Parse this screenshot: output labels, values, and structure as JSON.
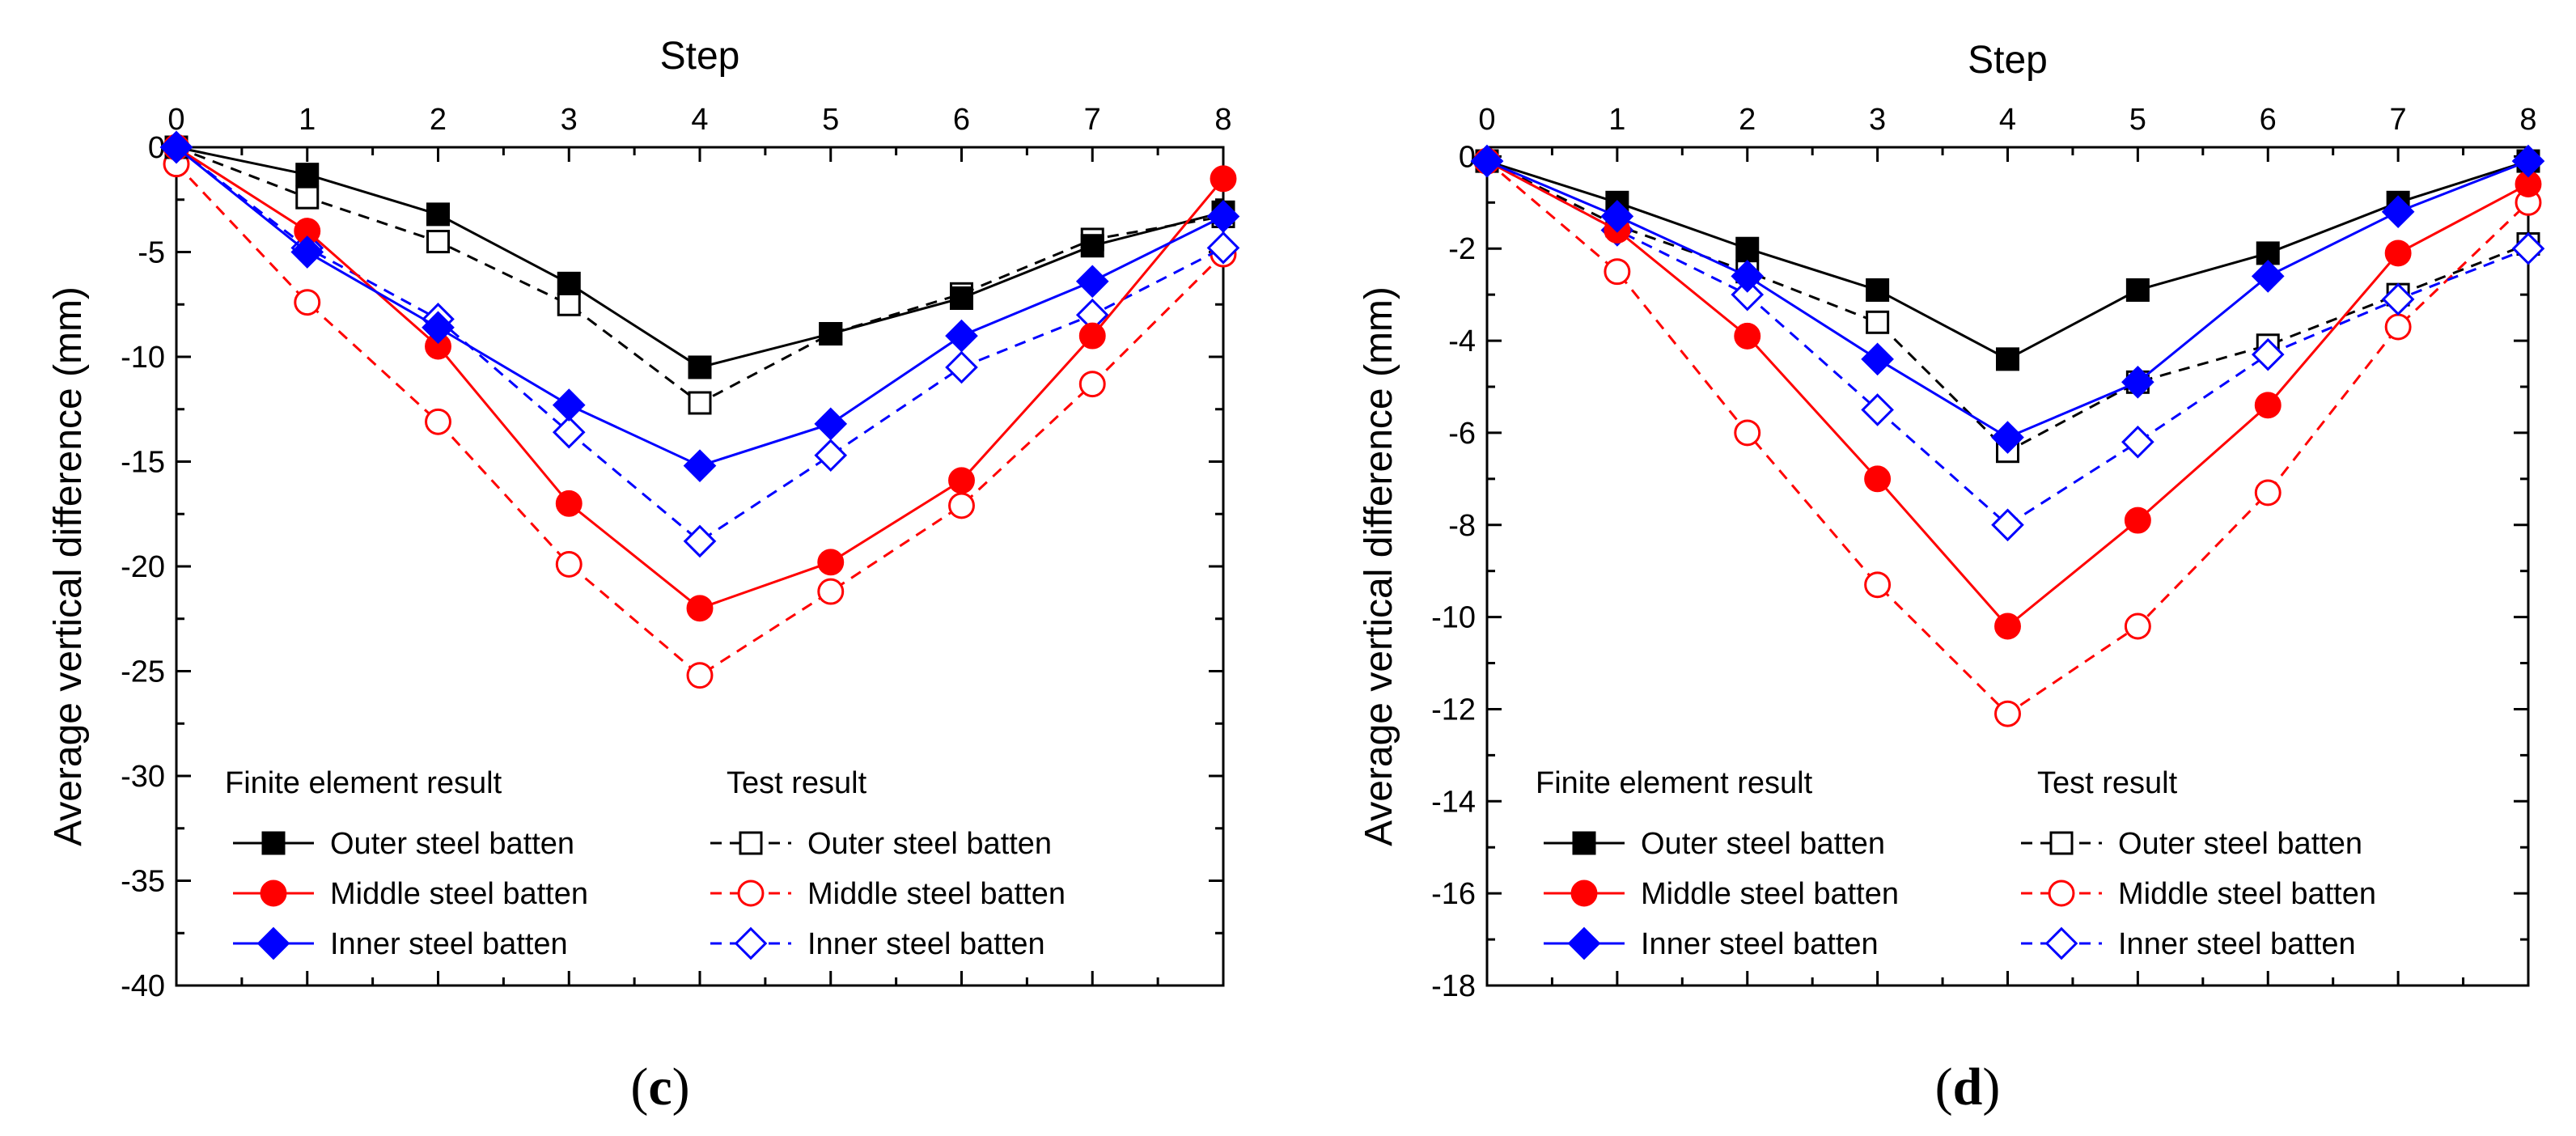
{
  "chart_data": [
    {
      "type": "line",
      "panel_label": {
        "open": "(",
        "letter": "c",
        "close": ")"
      },
      "xlabel": "Step",
      "ylabel": "Average vertical difference (mm)",
      "x": [
        0,
        1,
        2,
        3,
        4,
        5,
        6,
        7,
        8
      ],
      "xlim": [
        0,
        8
      ],
      "ylim": [
        -40,
        0
      ],
      "yticks": [
        0,
        -5,
        -10,
        -15,
        -20,
        -25,
        -30,
        -35,
        -40
      ],
      "xticks": [
        0,
        1,
        2,
        3,
        4,
        5,
        6,
        7,
        8
      ],
      "legend_headers": [
        "Finite element result",
        "Test result"
      ],
      "legend_placement": "bottom-left",
      "series": [
        {
          "name": "Outer steel batten",
          "group": "fe",
          "color": "#000000",
          "marker": "square",
          "filled": true,
          "dashed": false,
          "values": [
            0,
            -1.3,
            -3.2,
            -6.5,
            -10.5,
            -8.9,
            -7.2,
            -4.7,
            -3.1
          ]
        },
        {
          "name": "Middle steel batten",
          "group": "fe",
          "color": "#ff0000",
          "marker": "circle",
          "filled": true,
          "dashed": false,
          "values": [
            0,
            -4.0,
            -9.5,
            -17.0,
            -22.0,
            -19.8,
            -15.9,
            -9.0,
            -1.5
          ]
        },
        {
          "name": "Inner steel batten",
          "group": "fe",
          "color": "#0000ff",
          "marker": "diamond",
          "filled": true,
          "dashed": false,
          "values": [
            0,
            -5.0,
            -8.6,
            -12.3,
            -15.2,
            -13.2,
            -9.0,
            -6.4,
            -3.3
          ]
        },
        {
          "name": "Outer steel batten",
          "group": "test",
          "color": "#000000",
          "marker": "square",
          "filled": false,
          "dashed": true,
          "values": [
            0,
            -2.4,
            -4.5,
            -7.5,
            -12.2,
            -8.9,
            -7.0,
            -4.4,
            -3.3
          ]
        },
        {
          "name": "Middle steel batten",
          "group": "test",
          "color": "#ff0000",
          "marker": "circle",
          "filled": false,
          "dashed": true,
          "values": [
            -0.8,
            -7.4,
            -13.1,
            -19.9,
            -25.2,
            -21.2,
            -17.1,
            -11.3,
            -5.1
          ]
        },
        {
          "name": "Inner steel batten",
          "group": "test",
          "color": "#0000ff",
          "marker": "diamond",
          "filled": false,
          "dashed": true,
          "values": [
            0,
            -4.8,
            -8.2,
            -13.6,
            -18.8,
            -14.7,
            -10.5,
            -8.0,
            -4.8
          ]
        }
      ]
    },
    {
      "type": "line",
      "panel_label": {
        "open": "(",
        "letter": "d",
        "close": ")"
      },
      "xlabel": "Step",
      "ylabel": "Average vertical difference (mm)",
      "x": [
        0,
        1,
        2,
        3,
        4,
        5,
        6,
        7,
        8
      ],
      "xlim": [
        0,
        8
      ],
      "ylim": [
        -18,
        0.2
      ],
      "yticks": [
        0,
        -2,
        -4,
        -6,
        -8,
        -10,
        -12,
        -14,
        -16,
        -18
      ],
      "xticks": [
        0,
        1,
        2,
        3,
        4,
        5,
        6,
        7,
        8
      ],
      "legend_headers": [
        "Finite element result",
        "Test result"
      ],
      "legend_placement": "bottom-left",
      "series": [
        {
          "name": "Outer steel batten",
          "group": "fe",
          "color": "#000000",
          "marker": "square",
          "filled": true,
          "dashed": false,
          "values": [
            -0.1,
            -1.0,
            -2.0,
            -2.9,
            -4.4,
            -2.9,
            -2.1,
            -1.0,
            -0.1
          ]
        },
        {
          "name": "Middle steel batten",
          "group": "fe",
          "color": "#ff0000",
          "marker": "circle",
          "filled": true,
          "dashed": false,
          "values": [
            -0.1,
            -1.6,
            -3.9,
            -7.0,
            -10.2,
            -7.9,
            -5.4,
            -2.1,
            -0.6
          ]
        },
        {
          "name": "Inner steel batten",
          "group": "fe",
          "color": "#0000ff",
          "marker": "diamond",
          "filled": true,
          "dashed": false,
          "values": [
            -0.1,
            -1.3,
            -2.6,
            -4.4,
            -6.1,
            -4.9,
            -2.6,
            -1.2,
            -0.1
          ]
        },
        {
          "name": "Outer steel batten",
          "group": "test",
          "color": "#000000",
          "marker": "square",
          "filled": false,
          "dashed": true,
          "values": [
            -0.1,
            -1.5,
            -2.5,
            -3.6,
            -6.4,
            -4.9,
            -4.1,
            -3.0,
            -1.9
          ]
        },
        {
          "name": "Middle steel batten",
          "group": "test",
          "color": "#ff0000",
          "marker": "circle",
          "filled": false,
          "dashed": true,
          "values": [
            -0.1,
            -2.5,
            -6.0,
            -9.3,
            -12.1,
            -10.2,
            -7.3,
            -3.7,
            -1.0
          ]
        },
        {
          "name": "Inner steel batten",
          "group": "test",
          "color": "#0000ff",
          "marker": "diamond",
          "filled": false,
          "dashed": true,
          "values": [
            -0.1,
            -1.6,
            -3.0,
            -5.5,
            -8.0,
            -6.2,
            -4.3,
            -3.1,
            -2.0
          ]
        }
      ]
    }
  ]
}
